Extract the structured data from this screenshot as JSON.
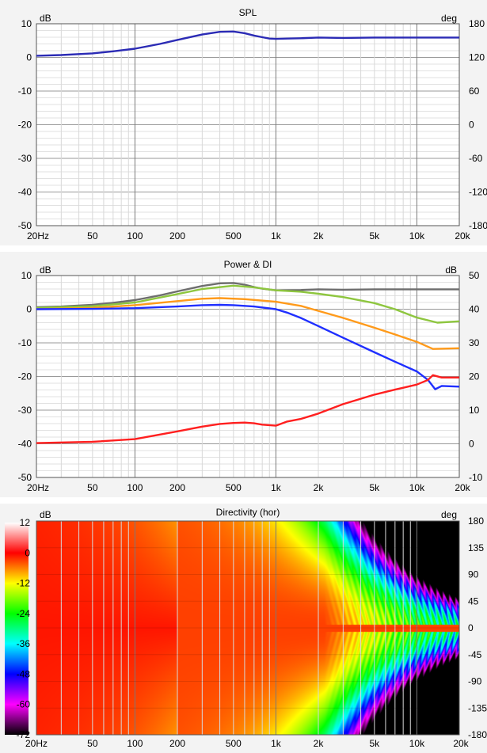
{
  "chart_data": [
    {
      "type": "line",
      "title": "SPL",
      "ylabel_left": "dB",
      "ylabel_right": "deg",
      "x_scale": "log",
      "xlim": [
        20,
        20000
      ],
      "ylim": [
        -50,
        10
      ],
      "y2lim": [
        -180,
        180
      ],
      "x_ticks": [
        20,
        50,
        100,
        200,
        500,
        1000,
        2000,
        5000,
        10000,
        20000
      ],
      "x_tick_labels": [
        "20Hz",
        "50",
        "100",
        "200",
        "500",
        "1k",
        "2k",
        "5k",
        "10k",
        "20k"
      ],
      "y_ticks": [
        10,
        0,
        -10,
        -20,
        -30,
        -40,
        -50
      ],
      "y_tick_labels": [
        "10",
        "0",
        "-10",
        "-20",
        "-30",
        "-40",
        "-50"
      ],
      "y2_tick_labels": [
        "180",
        "120",
        "60",
        "0",
        "-60",
        "-120",
        "-180"
      ],
      "grid": true,
      "series": [
        {
          "color": "#2b2bb5",
          "x": [
            20,
            30,
            50,
            70,
            100,
            150,
            200,
            300,
            400,
            500,
            600,
            700,
            800,
            900,
            1000,
            1200,
            1500,
            2000,
            3000,
            5000,
            10000,
            20000
          ],
          "y": [
            0.5,
            0.7,
            1.2,
            1.8,
            2.6,
            4.0,
            5.2,
            6.8,
            7.6,
            7.7,
            7.2,
            6.5,
            6.0,
            5.6,
            5.5,
            5.6,
            5.7,
            5.9,
            5.8,
            5.9,
            5.9,
            5.9
          ]
        }
      ]
    },
    {
      "type": "line",
      "title": "Power & DI",
      "ylabel_left": "dB",
      "ylabel_right": "dB",
      "x_scale": "log",
      "xlim": [
        20,
        20000
      ],
      "ylim": [
        -50,
        10
      ],
      "y2lim": [
        -10,
        50
      ],
      "x_ticks": [
        20,
        50,
        100,
        200,
        500,
        1000,
        2000,
        5000,
        10000,
        20000
      ],
      "x_tick_labels": [
        "20Hz",
        "50",
        "100",
        "200",
        "500",
        "1k",
        "2k",
        "5k",
        "10k",
        "20k"
      ],
      "y_ticks": [
        10,
        0,
        -10,
        -20,
        -30,
        -40,
        -50
      ],
      "y_tick_labels": [
        "10",
        "0",
        "-10",
        "-20",
        "-30",
        "-40",
        "-50"
      ],
      "y2_tick_labels": [
        "50",
        "40",
        "30",
        "20",
        "10",
        "0",
        "-10"
      ],
      "grid": true,
      "series": [
        {
          "color": "#6e6e6e",
          "x": [
            20,
            30,
            50,
            70,
            100,
            150,
            200,
            300,
            400,
            500,
            600,
            700,
            800,
            1000,
            1500,
            2000,
            3000,
            5000,
            10000,
            20000
          ],
          "y": [
            0.6,
            0.8,
            1.3,
            1.9,
            2.7,
            4.1,
            5.3,
            6.9,
            7.7,
            7.8,
            7.3,
            6.6,
            6.1,
            5.6,
            5.7,
            5.9,
            5.8,
            5.9,
            5.9,
            5.9
          ]
        },
        {
          "color": "#8ec63f",
          "x": [
            20,
            50,
            100,
            200,
            300,
            500,
            700,
            1000,
            1500,
            2000,
            3000,
            5000,
            7000,
            10000,
            14000,
            20000
          ],
          "y": [
            0.4,
            0.9,
            2.0,
            4.5,
            6.0,
            7.0,
            6.5,
            5.6,
            5.2,
            4.6,
            3.6,
            1.8,
            0.0,
            -2.5,
            -4.0,
            -3.6
          ]
        },
        {
          "color": "#ff9a1a",
          "x": [
            20,
            50,
            100,
            200,
            300,
            400,
            600,
            1000,
            1500,
            2000,
            3000,
            5000,
            7000,
            10000,
            13000,
            20000
          ],
          "y": [
            0.0,
            0.4,
            1.2,
            2.4,
            3.1,
            3.3,
            3.0,
            2.2,
            1.0,
            -0.5,
            -2.6,
            -5.5,
            -7.5,
            -9.7,
            -11.8,
            -11.6
          ]
        },
        {
          "color": "#1f2fff",
          "x": [
            20,
            50,
            100,
            200,
            300,
            400,
            500,
            700,
            1000,
            1200,
            1500,
            2000,
            3000,
            5000,
            7000,
            10000,
            12000,
            13500,
            15000,
            20000
          ],
          "y": [
            0.0,
            0.1,
            0.3,
            0.8,
            1.2,
            1.3,
            1.2,
            0.8,
            0.0,
            -1.0,
            -2.6,
            -5.0,
            -8.5,
            -12.8,
            -15.6,
            -18.5,
            -21.0,
            -23.8,
            -22.8,
            -23.0
          ]
        },
        {
          "color": "#ff1f1f",
          "x": [
            20,
            50,
            100,
            200,
            300,
            400,
            500,
            600,
            700,
            800,
            1000,
            1200,
            1500,
            2000,
            3000,
            5000,
            7000,
            10000,
            12000,
            13000,
            15000,
            20000
          ],
          "y": [
            -39.8,
            -39.4,
            -38.6,
            -36.3,
            -34.9,
            -34.1,
            -33.8,
            -33.7,
            -33.9,
            -34.3,
            -34.6,
            -33.4,
            -32.6,
            -31.0,
            -28.2,
            -25.4,
            -23.9,
            -22.4,
            -21.0,
            -19.6,
            -20.3,
            -20.3
          ]
        }
      ]
    },
    {
      "type": "heatmap",
      "title": "Directivity (hor)",
      "ylabel_left": "dB",
      "ylabel_right": "deg",
      "x_scale": "log",
      "xlim": [
        20,
        20000
      ],
      "ylim": [
        -180,
        180
      ],
      "x_ticks": [
        20,
        50,
        100,
        200,
        500,
        1000,
        2000,
        5000,
        10000,
        20000
      ],
      "x_tick_labels": [
        "20Hz",
        "50",
        "100",
        "200",
        "500",
        "1k",
        "2k",
        "5k",
        "10k",
        "20k"
      ],
      "y2_tick_labels": [
        "180",
        "135",
        "90",
        "45",
        "0",
        "-45",
        "-90",
        "-135",
        "-180"
      ],
      "colorbar_range": [
        -72,
        12
      ],
      "colorbar_tick_labels": [
        "12",
        "0",
        "-12",
        "-24",
        "-36",
        "-48",
        "-60",
        "-72"
      ],
      "colorbar_stops": [
        {
          "db": 12,
          "color": "#ffffff"
        },
        {
          "db": 6,
          "color": "#ff8080"
        },
        {
          "db": 0,
          "color": "#ff0000"
        },
        {
          "db": -12,
          "color": "#ffff00"
        },
        {
          "db": -24,
          "color": "#00ff00"
        },
        {
          "db": -36,
          "color": "#00ffff"
        },
        {
          "db": -48,
          "color": "#0000ff"
        },
        {
          "db": -60,
          "color": "#ff00ff"
        },
        {
          "db": -72,
          "color": "#000000"
        }
      ]
    }
  ]
}
